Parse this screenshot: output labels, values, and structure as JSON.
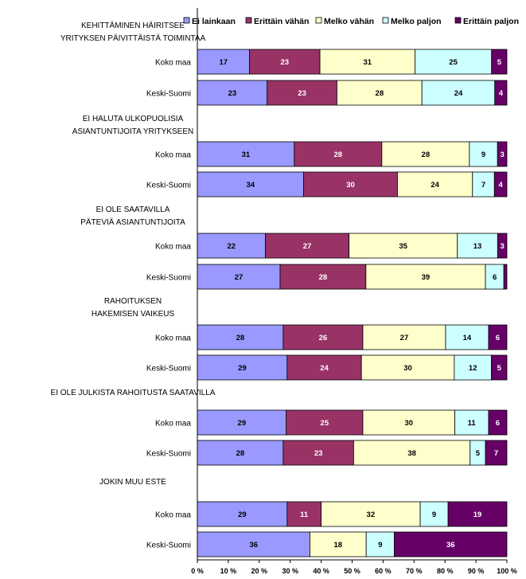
{
  "chart_data": {
    "type": "stacked-bar-horizontal-100",
    "legend": [
      "Ei lainkaan",
      "Erittäin vähän",
      "Melko vähän",
      "Melko paljon",
      "Erittäin paljon"
    ],
    "colors": [
      "#9999ff",
      "#993366",
      "#ffffcc",
      "#ccffff",
      "#660066"
    ],
    "label_colors": [
      "#000000",
      "#ffffff",
      "#000000",
      "#000000",
      "#ffffff"
    ],
    "xlim": [
      0,
      100
    ],
    "ticks": [
      "0 %",
      "10 %",
      "20 %",
      "30 %",
      "40 %",
      "50 %",
      "60 %",
      "70 %",
      "80 %",
      "90 %",
      "100 %"
    ],
    "groups": [
      {
        "title_lines": [
          "KEHITTÄMINEN HÄIRITSEE",
          "YRITYKSEN PÄIVITTÄISTÄ TOIMINTAA"
        ],
        "rows": [
          {
            "label": "Koko maa",
            "values": [
              17,
              23,
              31,
              25,
              5
            ]
          },
          {
            "label": "Keski-Suomi",
            "values": [
              23,
              23,
              28,
              24,
              4
            ]
          }
        ]
      },
      {
        "title_lines": [
          "EI HALUTA ULKOPUOLISIA",
          "ASIANTUNTIJOITA YRITYKSEEN"
        ],
        "rows": [
          {
            "label": "Koko maa",
            "values": [
              31,
              28,
              28,
              9,
              3
            ]
          },
          {
            "label": "Keski-Suomi",
            "values": [
              34,
              30,
              24,
              7,
              4
            ]
          }
        ]
      },
      {
        "title_lines": [
          "EI OLE SAATAVILLA",
          "PÄTEVIÄ ASIANTUNTIJOITA"
        ],
        "rows": [
          {
            "label": "Koko maa",
            "values": [
              22,
              27,
              35,
              13,
              3
            ]
          },
          {
            "label": "Keski-Suomi",
            "values": [
              27,
              28,
              39,
              6,
              1
            ]
          }
        ]
      },
      {
        "title_lines": [
          "RAHOITUKSEN",
          "HAKEMISEN VAIKEUS"
        ],
        "rows": [
          {
            "label": "Koko maa",
            "values": [
              28,
              26,
              27,
              14,
              6
            ]
          },
          {
            "label": "Keski-Suomi",
            "values": [
              29,
              24,
              30,
              12,
              5
            ]
          }
        ]
      },
      {
        "title_lines": [
          "EI OLE JULKISTA RAHOITUSTA SAATAVILLA"
        ],
        "rows": [
          {
            "label": "Koko maa",
            "values": [
              29,
              25,
              30,
              11,
              6
            ]
          },
          {
            "label": "Keski-Suomi",
            "values": [
              28,
              23,
              38,
              5,
              7
            ]
          }
        ]
      },
      {
        "title_lines": [
          "JOKIN MUU ESTE"
        ],
        "rows": [
          {
            "label": "Koko maa",
            "values": [
              29,
              11,
              32,
              9,
              19
            ]
          },
          {
            "label": "Keski-Suomi",
            "values": [
              36,
              0,
              18,
              9,
              36
            ]
          }
        ]
      }
    ]
  }
}
